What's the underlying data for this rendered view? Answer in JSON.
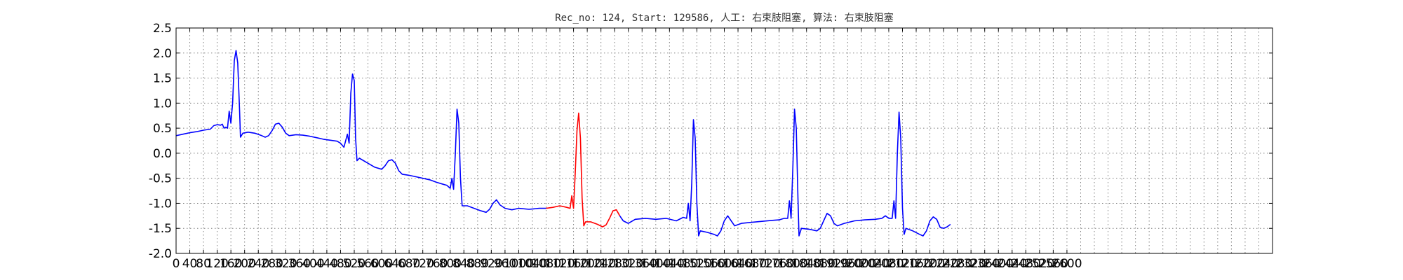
{
  "chart_data": {
    "type": "line",
    "title": "Rec_no: 124, Start: 129586, 人工: 右束肢阻塞, 算法: 右束肢阻塞",
    "xlabel": "",
    "ylabel": "",
    "xlim": [
      0,
      3200
    ],
    "ylim": [
      -2.0,
      2.5
    ],
    "grid": true,
    "y_ticks": [
      "-2.0",
      "-1.5",
      "-1.0",
      "-0.5",
      "0.0",
      "0.5",
      "1.0",
      "1.5",
      "2.0",
      "2.5"
    ],
    "x_ticks": [
      "0",
      "40",
      "80",
      "120",
      "160",
      "200",
      "240",
      "280",
      "320",
      "360",
      "400",
      "440",
      "480",
      "520",
      "560",
      "600",
      "640",
      "680",
      "720",
      "760",
      "800",
      "840",
      "880",
      "920",
      "960",
      "1000",
      "1040",
      "1080",
      "1120",
      "1160",
      "1200",
      "1240",
      "1280",
      "1320",
      "1360",
      "1400",
      "1440",
      "1480",
      "1520",
      "1560",
      "1600",
      "1640",
      "1680",
      "1720",
      "1760",
      "1800",
      "1840",
      "1880",
      "1920",
      "1960",
      "2000",
      "2040",
      "2080",
      "2120",
      "2160",
      "2200",
      "2240",
      "2280",
      "2320",
      "2360",
      "2400",
      "2440",
      "2480",
      "2520",
      "2560",
      "2600"
    ],
    "x_grid_step": 40,
    "y_grid_step": 0.5,
    "colors": {
      "normal": "#0000ff",
      "highlight": "#ff0000",
      "axes": "#000000",
      "grid": "#7f7f7f"
    },
    "highlight_range": [
      1180,
      1380
    ],
    "series": [
      {
        "color": "#0000ff",
        "points": [
          [
            0,
            0.35
          ],
          [
            20,
            0.38
          ],
          [
            40,
            0.41
          ],
          [
            60,
            0.43
          ],
          [
            80,
            0.46
          ],
          [
            100,
            0.48
          ],
          [
            110,
            0.55
          ],
          [
            120,
            0.57
          ],
          [
            130,
            0.56
          ],
          [
            135,
            0.58
          ],
          [
            140,
            0.5
          ],
          [
            145,
            0.52
          ],
          [
            150,
            0.5
          ],
          [
            155,
            0.84
          ],
          [
            160,
            0.6
          ],
          [
            165,
            1.0
          ],
          [
            170,
            1.85
          ],
          [
            175,
            2.05
          ],
          [
            180,
            1.8
          ],
          [
            185,
            0.9
          ],
          [
            188,
            0.32
          ],
          [
            195,
            0.4
          ],
          [
            210,
            0.42
          ],
          [
            230,
            0.4
          ],
          [
            250,
            0.35
          ],
          [
            260,
            0.32
          ],
          [
            270,
            0.35
          ],
          [
            280,
            0.45
          ],
          [
            290,
            0.58
          ],
          [
            300,
            0.6
          ],
          [
            310,
            0.52
          ],
          [
            320,
            0.4
          ],
          [
            330,
            0.35
          ],
          [
            350,
            0.37
          ],
          [
            370,
            0.36
          ],
          [
            390,
            0.34
          ],
          [
            410,
            0.31
          ],
          [
            430,
            0.28
          ],
          [
            450,
            0.26
          ],
          [
            470,
            0.24
          ],
          [
            480,
            0.2
          ],
          [
            490,
            0.12
          ],
          [
            500,
            0.38
          ],
          [
            505,
            0.2
          ],
          [
            510,
            1.2
          ],
          [
            515,
            1.58
          ],
          [
            520,
            1.45
          ],
          [
            524,
            0.3
          ],
          [
            528,
            -0.15
          ],
          [
            535,
            -0.1
          ],
          [
            560,
            -0.2
          ],
          [
            580,
            -0.28
          ],
          [
            600,
            -0.32
          ],
          [
            610,
            -0.25
          ],
          [
            620,
            -0.15
          ],
          [
            630,
            -0.13
          ],
          [
            640,
            -0.2
          ],
          [
            650,
            -0.35
          ],
          [
            660,
            -0.42
          ],
          [
            680,
            -0.44
          ],
          [
            700,
            -0.47
          ],
          [
            720,
            -0.5
          ],
          [
            740,
            -0.53
          ],
          [
            760,
            -0.58
          ],
          [
            780,
            -0.62
          ],
          [
            790,
            -0.64
          ],
          [
            800,
            -0.7
          ],
          [
            805,
            -0.5
          ],
          [
            810,
            -0.72
          ],
          [
            815,
            0.0
          ],
          [
            820,
            0.88
          ],
          [
            825,
            0.6
          ],
          [
            830,
            -0.5
          ],
          [
            835,
            -1.05
          ],
          [
            850,
            -1.05
          ],
          [
            870,
            -1.1
          ],
          [
            890,
            -1.15
          ],
          [
            905,
            -1.18
          ],
          [
            915,
            -1.12
          ],
          [
            925,
            -1.0
          ],
          [
            935,
            -0.93
          ],
          [
            945,
            -1.03
          ],
          [
            960,
            -1.1
          ],
          [
            980,
            -1.13
          ],
          [
            1000,
            -1.1
          ],
          [
            1030,
            -1.12
          ],
          [
            1060,
            -1.1
          ],
          [
            1080,
            -1.1
          ]
        ]
      },
      {
        "color": "#ff0000",
        "points": [
          [
            1080,
            -1.1
          ],
          [
            1100,
            -1.08
          ],
          [
            1120,
            -1.05
          ],
          [
            1140,
            -1.08
          ],
          [
            1150,
            -1.1
          ],
          [
            1155,
            -0.85
          ],
          [
            1160,
            -1.1
          ],
          [
            1165,
            -0.4
          ],
          [
            1170,
            0.45
          ],
          [
            1175,
            0.8
          ],
          [
            1180,
            0.3
          ],
          [
            1185,
            -0.9
          ],
          [
            1190,
            -1.45
          ],
          [
            1195,
            -1.37
          ],
          [
            1210,
            -1.37
          ],
          [
            1230,
            -1.42
          ],
          [
            1245,
            -1.47
          ],
          [
            1255,
            -1.43
          ],
          [
            1265,
            -1.3
          ],
          [
            1275,
            -1.15
          ],
          [
            1285,
            -1.13
          ],
          [
            1295,
            -1.25
          ]
        ]
      },
      {
        "color": "#0000ff",
        "points": [
          [
            1295,
            -1.25
          ],
          [
            1305,
            -1.35
          ],
          [
            1320,
            -1.4
          ],
          [
            1340,
            -1.32
          ],
          [
            1370,
            -1.3
          ],
          [
            1400,
            -1.32
          ],
          [
            1430,
            -1.3
          ],
          [
            1460,
            -1.35
          ],
          [
            1480,
            -1.28
          ],
          [
            1490,
            -1.3
          ],
          [
            1495,
            -1.0
          ],
          [
            1500,
            -1.35
          ],
          [
            1505,
            -0.6
          ],
          [
            1510,
            0.67
          ],
          [
            1515,
            0.3
          ],
          [
            1520,
            -1.0
          ],
          [
            1525,
            -1.65
          ],
          [
            1530,
            -1.55
          ],
          [
            1550,
            -1.58
          ],
          [
            1570,
            -1.62
          ],
          [
            1580,
            -1.65
          ],
          [
            1590,
            -1.55
          ],
          [
            1600,
            -1.35
          ],
          [
            1610,
            -1.25
          ],
          [
            1620,
            -1.35
          ],
          [
            1630,
            -1.45
          ],
          [
            1650,
            -1.4
          ],
          [
            1680,
            -1.38
          ],
          [
            1710,
            -1.36
          ],
          [
            1740,
            -1.34
          ],
          [
            1760,
            -1.33
          ],
          [
            1775,
            -1.3
          ],
          [
            1785,
            -1.3
          ],
          [
            1790,
            -0.95
          ],
          [
            1795,
            -1.3
          ],
          [
            1800,
            -0.3
          ],
          [
            1805,
            0.88
          ],
          [
            1810,
            0.5
          ],
          [
            1815,
            -0.9
          ],
          [
            1818,
            -1.65
          ],
          [
            1825,
            -1.5
          ],
          [
            1850,
            -1.52
          ],
          [
            1870,
            -1.55
          ],
          [
            1880,
            -1.5
          ],
          [
            1890,
            -1.35
          ],
          [
            1900,
            -1.2
          ],
          [
            1910,
            -1.25
          ],
          [
            1920,
            -1.4
          ],
          [
            1930,
            -1.45
          ],
          [
            1950,
            -1.4
          ],
          [
            1980,
            -1.35
          ],
          [
            2010,
            -1.33
          ],
          [
            2040,
            -1.32
          ],
          [
            2060,
            -1.3
          ],
          [
            2070,
            -1.25
          ],
          [
            2080,
            -1.3
          ],
          [
            2090,
            -1.3
          ],
          [
            2095,
            -0.95
          ],
          [
            2100,
            -1.3
          ],
          [
            2105,
            0.0
          ],
          [
            2110,
            0.82
          ],
          [
            2115,
            0.3
          ],
          [
            2120,
            -1.1
          ],
          [
            2125,
            -1.62
          ],
          [
            2130,
            -1.5
          ],
          [
            2150,
            -1.55
          ],
          [
            2170,
            -1.62
          ],
          [
            2180,
            -1.65
          ],
          [
            2190,
            -1.55
          ],
          [
            2200,
            -1.35
          ],
          [
            2210,
            -1.27
          ],
          [
            2220,
            -1.32
          ],
          [
            2230,
            -1.48
          ],
          [
            2240,
            -1.5
          ],
          [
            2250,
            -1.47
          ],
          [
            2260,
            -1.42
          ]
        ]
      }
    ]
  }
}
